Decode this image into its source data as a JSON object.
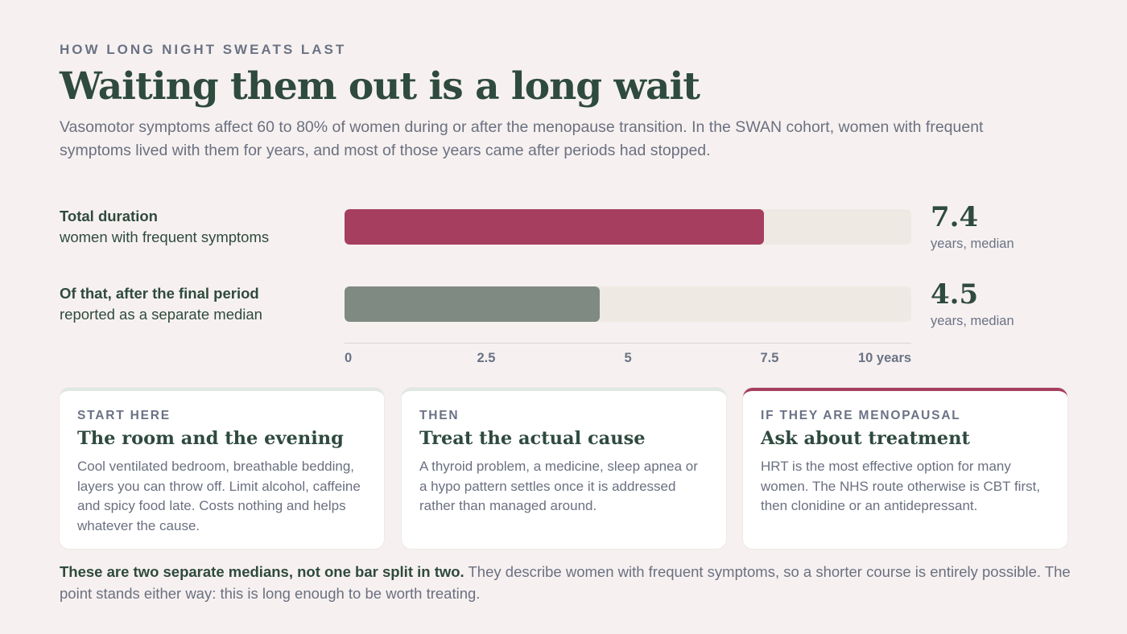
{
  "eyebrow": "HOW LONG NIGHT SWEATS LAST",
  "title": "Waiting them out is a long wait",
  "subtitle": "Vasomotor symptoms affect 60 to 80% of women during or after the menopause transition. In the SWAN cohort, women with frequent symptoms lived with them for years, and most of those years came after periods had stopped.",
  "chart_data": {
    "type": "bar",
    "orientation": "horizontal",
    "categories": [
      "Total duration",
      "Of that, after the final period"
    ],
    "category_sublabels": [
      "women with frequent symptoms",
      "reported as a separate median"
    ],
    "values": [
      7.4,
      4.5
    ],
    "value_labels": [
      "7.4",
      "4.5"
    ],
    "value_units": [
      "years, median",
      "years, median"
    ],
    "colors": [
      "#a63e5f",
      "#7f8a82"
    ],
    "track_color": "#efe9e4",
    "xlim": [
      0,
      10
    ],
    "xticks": [
      0,
      2.5,
      5,
      7.5,
      10
    ],
    "xtick_labels": [
      "0",
      "2.5",
      "5",
      "7.5",
      "10 years"
    ],
    "grid": false
  },
  "cards": [
    {
      "kicker": "START HERE",
      "title": "The room and the evening",
      "body": "Cool ventilated bedroom, breathable bedding, layers you can throw off. Limit alcohol, caffeine and spicy food late. Costs nothing and helps whatever the cause."
    },
    {
      "kicker": "THEN",
      "title": "Treat the actual cause",
      "body": "A thyroid problem, a medicine, sleep apnea or a hypo pattern settles once it is addressed rather than managed around."
    },
    {
      "kicker": "IF THEY ARE MENOPAUSAL",
      "title": "Ask about treatment",
      "body": "HRT is the most effective option for many women. The NHS route otherwise is CBT first, then clonidine or an antidepressant."
    }
  ],
  "footnote": {
    "bold": "These are two separate medians, not one bar split in two.",
    "text": " They describe women with frequent symptoms, so a shorter course is entirely possible. The point stands either way: this is long enough to be worth treating."
  }
}
